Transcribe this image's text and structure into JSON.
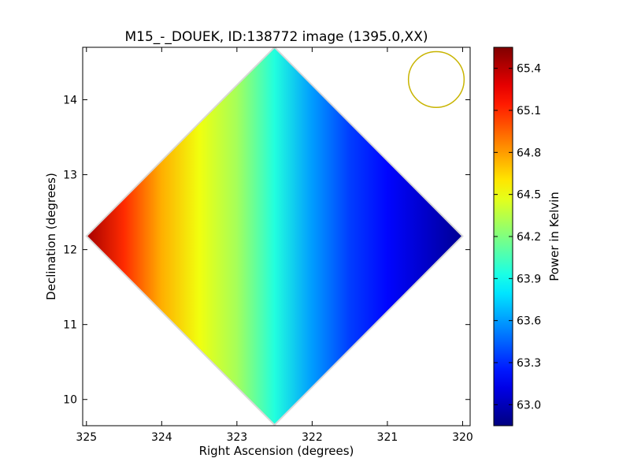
{
  "chart_data": {
    "type": "heatmap",
    "title": "M15_-_DOUEK, ID:138772 image (1395.0,XX)",
    "xlabel": "Right Ascension (degrees)",
    "ylabel": "Declination (degrees)",
    "xlim": [
      325.05,
      319.9
    ],
    "ylim": [
      9.65,
      14.7
    ],
    "x_ticks": [
      325,
      324,
      323,
      322,
      321,
      320
    ],
    "y_ticks": [
      10,
      11,
      12,
      13,
      14
    ],
    "x_tick_labels": [
      "325",
      "324",
      "323",
      "322",
      "321",
      "320"
    ],
    "y_tick_labels": [
      "10",
      "11",
      "12",
      "13",
      "14"
    ],
    "map_region": {
      "shape": "diamond",
      "center": [
        322.5,
        12.18
      ],
      "half_width_ra": 2.5,
      "half_height_dec": 2.52
    },
    "beam_circle": {
      "center": [
        320.35,
        14.27
      ],
      "radius_ra": 0.37,
      "color": "#c8b400"
    },
    "power_gradient": {
      "ra": [
        325.0,
        324.5,
        324.0,
        323.5,
        323.0,
        322.5,
        322.0,
        321.5,
        321.0,
        320.5,
        320.0
      ],
      "power": [
        65.45,
        65.1,
        64.75,
        64.5,
        64.3,
        63.95,
        63.6,
        63.35,
        63.2,
        63.05,
        62.9
      ]
    },
    "colorbar": {
      "label": "Power in Kelvin",
      "min": 62.85,
      "max": 65.55,
      "ticks": [
        63.0,
        63.3,
        63.6,
        63.9,
        64.2,
        64.5,
        64.8,
        65.1,
        65.4
      ],
      "tick_labels": [
        "63.0",
        "63.3",
        "63.6",
        "63.9",
        "64.2",
        "64.5",
        "64.8",
        "65.1",
        "65.4"
      ],
      "colormap": "jet"
    },
    "grid": false
  }
}
